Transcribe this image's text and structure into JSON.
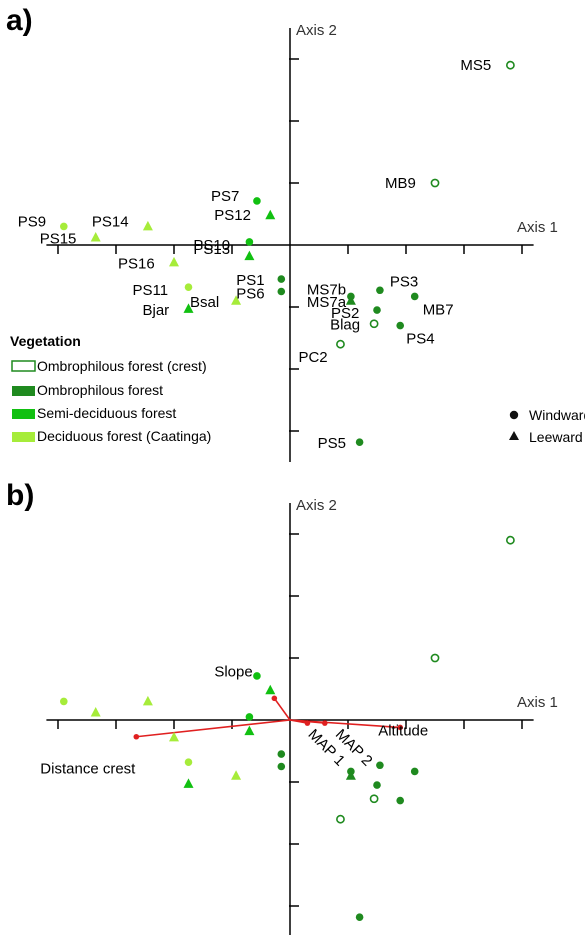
{
  "colors": {
    "ombrophilous": "#1f8a1f",
    "semi_deciduous": "#11c011",
    "deciduous": "#a6ec3a",
    "vector": "#e02020",
    "axis": "#000000"
  },
  "legend": {
    "vegetation_title": "Vegetation",
    "vegetation_items": [
      {
        "label": "Ombrophilous forest (crest)",
        "group": "crest"
      },
      {
        "label": "Ombrophilous forest",
        "group": "ombro"
      },
      {
        "label": "Semi-deciduous forest",
        "group": "semi"
      },
      {
        "label": "Deciduous forest (Caatinga)",
        "group": "decid"
      }
    ],
    "shape_items": [
      {
        "label": "Windward",
        "shape": "circle"
      },
      {
        "label": "Leeward",
        "shape": "triangle"
      }
    ]
  },
  "chart_data": [
    {
      "type": "scatter",
      "panel_label": "a)",
      "xlabel": "Axis 1",
      "ylabel": "Axis 2",
      "xlim": [
        -4.2,
        4.2
      ],
      "ylim": [
        -3.5,
        3.5
      ],
      "tick_step": 1,
      "points": [
        {
          "name": "MS5",
          "x": 3.8,
          "y": 2.9,
          "group": "crest",
          "shape": "circle"
        },
        {
          "name": "MB9",
          "x": 2.5,
          "y": 1.0,
          "group": "crest",
          "shape": "circle"
        },
        {
          "name": "PS7",
          "x": -0.57,
          "y": 0.71,
          "group": "semi",
          "shape": "circle"
        },
        {
          "name": "PS12",
          "x": -0.34,
          "y": 0.48,
          "group": "semi",
          "shape": "triangle"
        },
        {
          "name": "PS9",
          "x": -3.9,
          "y": 0.3,
          "group": "decid",
          "shape": "circle"
        },
        {
          "name": "PS14",
          "x": -2.45,
          "y": 0.3,
          "group": "decid",
          "shape": "triangle"
        },
        {
          "name": "PS15",
          "x": -3.35,
          "y": 0.12,
          "group": "decid",
          "shape": "triangle"
        },
        {
          "name": "PS13",
          "x": -0.7,
          "y": -0.18,
          "group": "semi",
          "shape": "triangle"
        },
        {
          "name": "PS10",
          "x": -0.7,
          "y": 0.05,
          "group": "semi",
          "shape": "circle"
        },
        {
          "name": "PS16",
          "x": -2.0,
          "y": -0.28,
          "group": "decid",
          "shape": "triangle"
        },
        {
          "name": "PS1",
          "x": -0.15,
          "y": -0.55,
          "group": "ombro",
          "shape": "circle"
        },
        {
          "name": "PS6",
          "x": -0.15,
          "y": -0.75,
          "group": "ombro",
          "shape": "circle"
        },
        {
          "name": "MS7b",
          "x": 1.05,
          "y": -0.83,
          "group": "ombro",
          "shape": "circle"
        },
        {
          "name": "MS7a",
          "x": 1.05,
          "y": -0.9,
          "group": "ombro",
          "shape": "triangle"
        },
        {
          "name": "PS3",
          "x": 1.55,
          "y": -0.73,
          "group": "ombro",
          "shape": "circle"
        },
        {
          "name": "PS2",
          "x": 1.5,
          "y": -1.05,
          "group": "ombro",
          "shape": "circle"
        },
        {
          "name": "MB7",
          "x": 2.15,
          "y": -0.83,
          "group": "ombro",
          "shape": "circle"
        },
        {
          "name": "PS11",
          "x": -1.75,
          "y": -0.68,
          "group": "decid",
          "shape": "circle"
        },
        {
          "name": "Bsal",
          "x": -0.93,
          "y": -0.9,
          "group": "decid",
          "shape": "triangle"
        },
        {
          "name": "Bjar",
          "x": -1.75,
          "y": -1.03,
          "group": "semi",
          "shape": "triangle"
        },
        {
          "name": "Blag",
          "x": 1.45,
          "y": -1.27,
          "group": "crest",
          "shape": "circle"
        },
        {
          "name": "PS4",
          "x": 1.9,
          "y": -1.3,
          "group": "ombro",
          "shape": "circle"
        },
        {
          "name": "PC2",
          "x": 0.87,
          "y": -1.6,
          "group": "crest",
          "shape": "circle"
        },
        {
          "name": "PS5",
          "x": 1.2,
          "y": -3.18,
          "group": "ombro",
          "shape": "circle"
        }
      ]
    },
    {
      "type": "scatter",
      "panel_label": "b)",
      "xlabel": "Axis 1",
      "ylabel": "Axis 2",
      "xlim": [
        -4.2,
        4.2
      ],
      "ylim": [
        -3.5,
        3.5
      ],
      "tick_step": 1,
      "points_same_as_panel": "a)",
      "vectors": [
        {
          "name": "Slope",
          "x": -0.27,
          "y": 0.35
        },
        {
          "name": "Distance crest",
          "x": -2.65,
          "y": -0.27
        },
        {
          "name": "MAP 1",
          "x": 0.3,
          "y": -0.05
        },
        {
          "name": "MAP 2",
          "x": 0.6,
          "y": -0.05
        },
        {
          "name": "Altitude",
          "x": 1.9,
          "y": -0.12
        }
      ]
    }
  ]
}
